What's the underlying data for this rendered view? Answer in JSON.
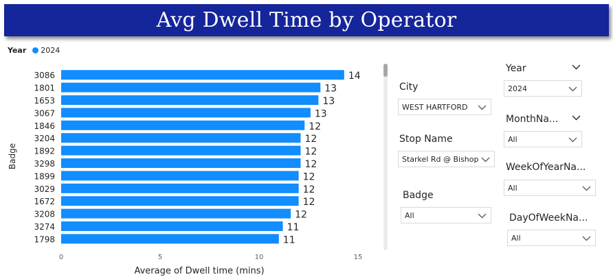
{
  "title": "Avg Dwell Time by Operator",
  "legend": {
    "title": "Year",
    "items": [
      {
        "label": "2024",
        "color": "#118dff"
      }
    ]
  },
  "chart_data": {
    "type": "bar",
    "orientation": "horizontal",
    "categories": [
      "3086",
      "1801",
      "1653",
      "3067",
      "1846",
      "3204",
      "1892",
      "3298",
      "1899",
      "3029",
      "1672",
      "3208",
      "3274",
      "1798"
    ],
    "series": [
      {
        "name": "2024",
        "values": [
          14.3,
          13.1,
          13.0,
          12.6,
          12.3,
          12.1,
          12.1,
          12.1,
          12.0,
          12.0,
          12.0,
          11.6,
          11.2,
          11.0
        ]
      }
    ],
    "data_labels": [
      "14",
      "13",
      "13",
      "13",
      "12",
      "12",
      "12",
      "12",
      "12",
      "12",
      "12",
      "12",
      "11",
      "11"
    ],
    "xlabel": "Average of Dwell time (mins)",
    "ylabel": "Badge",
    "xlim": [
      0,
      15
    ],
    "xticks": [
      "0",
      "5",
      "10",
      "15"
    ],
    "bar_color": "#118dff",
    "grid": false,
    "legend_position": "top-left"
  },
  "slicers": {
    "city": {
      "title": "City",
      "value": "WEST HARTFORD"
    },
    "stop_name": {
      "title": "Stop Name",
      "value": "Starkel Rd @ Bishop..."
    },
    "badge": {
      "title": "Badge",
      "value": "All"
    },
    "year": {
      "title": "Year",
      "value": "2024"
    },
    "month": {
      "title": "MonthNa...",
      "value": "All"
    },
    "week": {
      "title": "WeekOfYearNa...",
      "value": "All"
    },
    "day": {
      "title": "DayOfWeekNa...",
      "value": "All"
    }
  },
  "icons": {
    "dropdown": "chevron-down-icon",
    "header_chevron": "chevron-down-icon"
  }
}
